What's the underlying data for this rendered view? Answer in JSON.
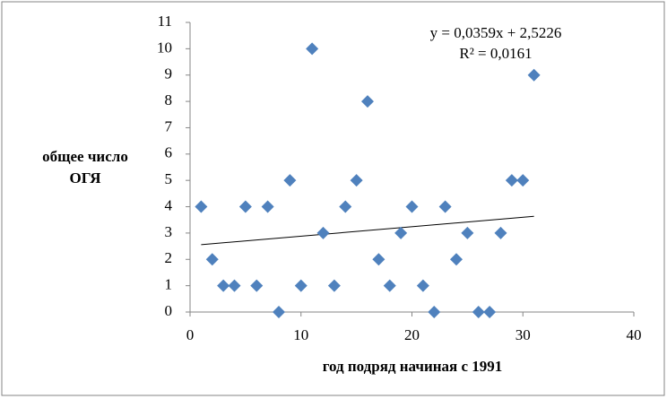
{
  "chart_data": {
    "type": "scatter",
    "x_label": "год подряд начиная с 1991",
    "y_label": [
      "общее число",
      "ОГЯ"
    ],
    "series": [
      {
        "name": null,
        "color": "#4f81bd",
        "x": [
          1,
          2,
          3,
          4,
          5,
          6,
          7,
          8,
          9,
          10,
          11,
          12,
          13,
          14,
          15,
          16,
          17,
          18,
          19,
          20,
          21,
          22,
          23,
          24,
          25,
          26,
          27,
          28,
          29,
          30,
          31
        ],
        "values": [
          4,
          2,
          1,
          1,
          4,
          1,
          4,
          0,
          5,
          1,
          10,
          3,
          1,
          4,
          5,
          8,
          2,
          1,
          3,
          4,
          1,
          0,
          4,
          2,
          3,
          0,
          0,
          3,
          5,
          5,
          9
        ]
      }
    ],
    "trendline": {
      "slope": 0.0359,
      "intercept": 2.5226,
      "color": "#000000",
      "equation": "y = 0,0359x + 2,5226",
      "r2": "R² = 0,0161"
    },
    "xlim": [
      0,
      40
    ],
    "xticks": [
      0,
      10,
      20,
      30,
      40
    ],
    "ylim": [
      0,
      11
    ],
    "yticks": [
      0,
      1,
      2,
      3,
      4,
      5,
      6,
      7,
      8,
      9,
      10,
      11
    ],
    "grid": false
  }
}
